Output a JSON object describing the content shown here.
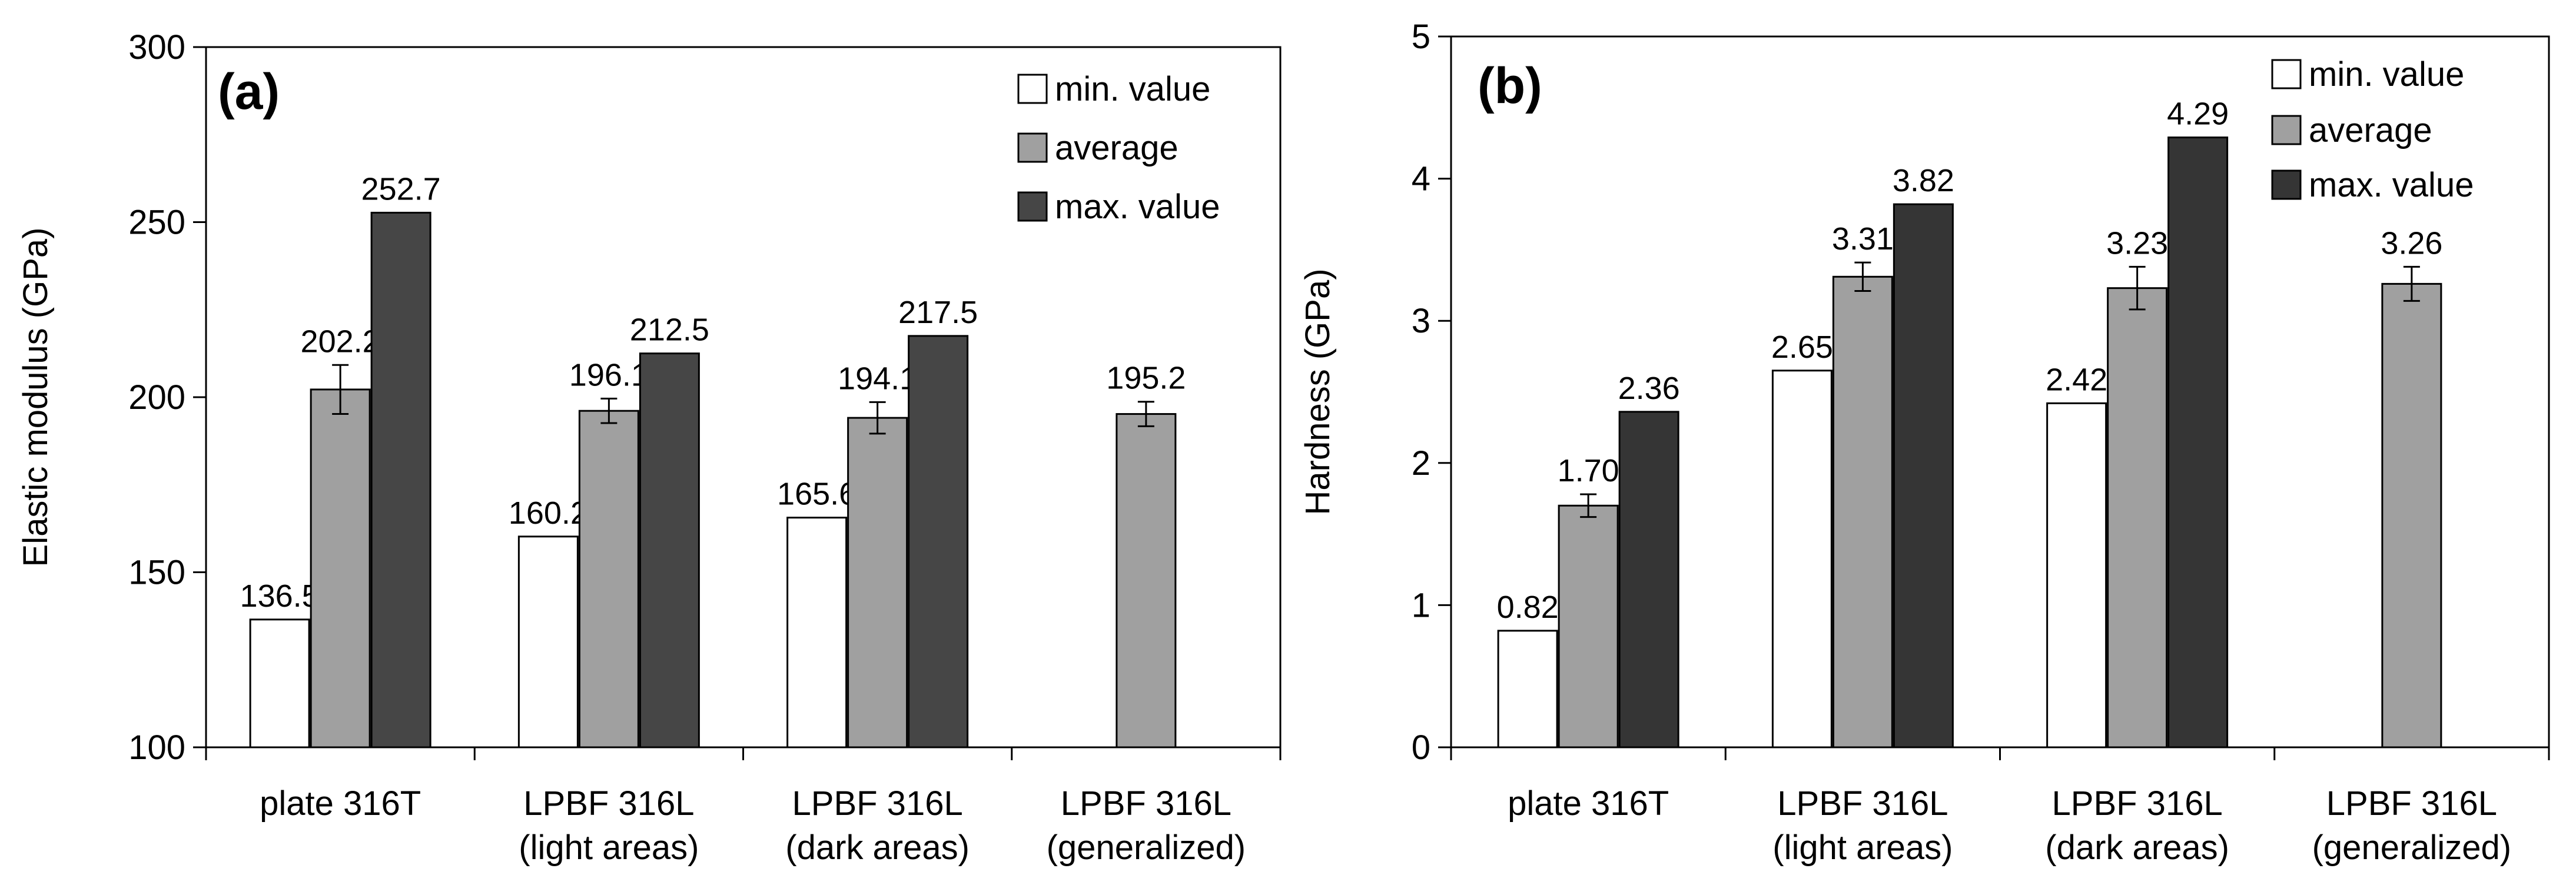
{
  "chart_data": [
    {
      "type": "bar",
      "panel_label": "(a)",
      "ylabel": "Elastic modulus (GPa)",
      "ylim": [
        100,
        300
      ],
      "yticks": [
        "100",
        "150",
        "200",
        "250",
        "300"
      ],
      "categories": [
        [
          "plate 316T"
        ],
        [
          "LPBF 316L",
          "(light areas)"
        ],
        [
          "LPBF 316L",
          "(dark areas)"
        ],
        [
          "LPBF 316L",
          "(generalized)"
        ]
      ],
      "legend_position": "top-right",
      "series": [
        {
          "name": "min. value",
          "color": "#ffffff",
          "values": [
            136.5,
            160.2,
            165.6,
            null
          ],
          "labels": [
            "136.5",
            "160.2",
            "165.6",
            null
          ]
        },
        {
          "name": "average",
          "color": "#a0a0a0",
          "values": [
            202.2,
            196.1,
            194.1,
            195.2
          ],
          "labels": [
            "202.2",
            "196.1",
            "194.1",
            "195.2"
          ],
          "errors": [
            7,
            3.5,
            4.5,
            3.5
          ]
        },
        {
          "name": "max. value",
          "color": "#464646",
          "values": [
            252.7,
            212.5,
            217.5,
            null
          ],
          "labels": [
            "252.7",
            "212.5",
            "217.5",
            null
          ]
        }
      ]
    },
    {
      "type": "bar",
      "panel_label": "(b)",
      "ylabel": "Hardness (GPa)",
      "ylim": [
        0,
        5
      ],
      "yticks": [
        "0",
        "1",
        "2",
        "3",
        "4",
        "5"
      ],
      "categories": [
        [
          "plate 316T"
        ],
        [
          "LPBF 316L",
          "(light areas)"
        ],
        [
          "LPBF 316L",
          "(dark areas)"
        ],
        [
          "LPBF 316L",
          "(generalized)"
        ]
      ],
      "legend_position": "top-left",
      "series": [
        {
          "name": "min. value",
          "color": "#ffffff",
          "values": [
            0.82,
            2.65,
            2.42,
            null
          ],
          "labels": [
            "0.82",
            "2.65",
            "2.42",
            null
          ]
        },
        {
          "name": "average",
          "color": "#a0a0a0",
          "values": [
            1.7,
            3.31,
            3.23,
            3.26
          ],
          "labels": [
            "1.70",
            "3.31",
            "3.23",
            "3.26"
          ],
          "errors": [
            0.08,
            0.1,
            0.15,
            0.12
          ]
        },
        {
          "name": "max. value",
          "color": "#353535",
          "values": [
            2.36,
            3.82,
            4.29,
            null
          ],
          "labels": [
            "2.36",
            "3.82",
            "4.29",
            null
          ]
        }
      ]
    }
  ]
}
